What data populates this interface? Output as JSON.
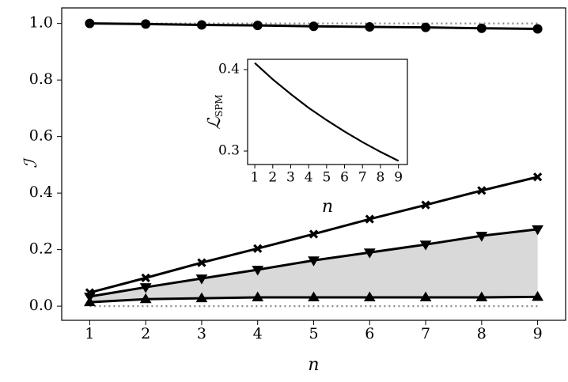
{
  "chart_data": [
    {
      "type": "line",
      "x_label": "n",
      "y_label": "ℐ",
      "x": [
        1,
        2,
        3,
        4,
        5,
        6,
        7,
        8,
        9
      ],
      "series": [
        {
          "color": "#000000",
          "marker": "o",
          "values": [
            1.0,
            0.998,
            0.995,
            0.993,
            0.99,
            0.988,
            0.986,
            0.983,
            0.981
          ]
        },
        {
          "color": "#000000",
          "marker": "x",
          "values": [
            0.048,
            0.1,
            0.154,
            0.204,
            0.255,
            0.308,
            0.358,
            0.409,
            0.457
          ]
        },
        {
          "color": "#000000",
          "marker": "v",
          "values": [
            0.034,
            0.067,
            0.098,
            0.129,
            0.162,
            0.19,
            0.218,
            0.249,
            0.272
          ]
        },
        {
          "color": "#000000",
          "marker": "^",
          "values": [
            0.014,
            0.025,
            0.028,
            0.031,
            0.031,
            0.031,
            0.031,
            0.031,
            0.033
          ]
        }
      ],
      "fill_between": {
        "series": [
          2,
          3
        ],
        "color": "#d9d9d9"
      },
      "reference_lines": [
        0,
        1
      ],
      "reference_line_color": "#888888",
      "xlim": [
        0.5,
        9.5
      ],
      "ylim": [
        -0.05,
        1.055
      ],
      "xticks": [
        1,
        2,
        3,
        4,
        5,
        6,
        7,
        8,
        9
      ],
      "yticks": [
        {
          "value": 0,
          "label": "0.0"
        },
        0.2,
        0.4,
        0.6,
        0.8,
        {
          "value": 1,
          "label": "1.0"
        }
      ]
    },
    {
      "type": "line",
      "x_label": "n",
      "y_label": "ℒ",
      "y_label_sub": "SPM",
      "x": [
        1,
        2,
        3,
        4,
        5,
        6,
        7,
        8,
        9
      ],
      "series": [
        {
          "color": "#000000",
          "values": [
            0.408,
            0.388,
            0.37,
            0.353,
            0.338,
            0.324,
            0.311,
            0.299,
            0.288
          ]
        }
      ],
      "xlim": [
        0.6,
        9.5
      ],
      "ylim": [
        0.2835,
        0.4126
      ],
      "xticks": [
        1,
        2,
        3,
        4,
        5,
        6,
        7,
        8,
        9
      ],
      "yticks": [
        0.3,
        0.4
      ]
    }
  ]
}
